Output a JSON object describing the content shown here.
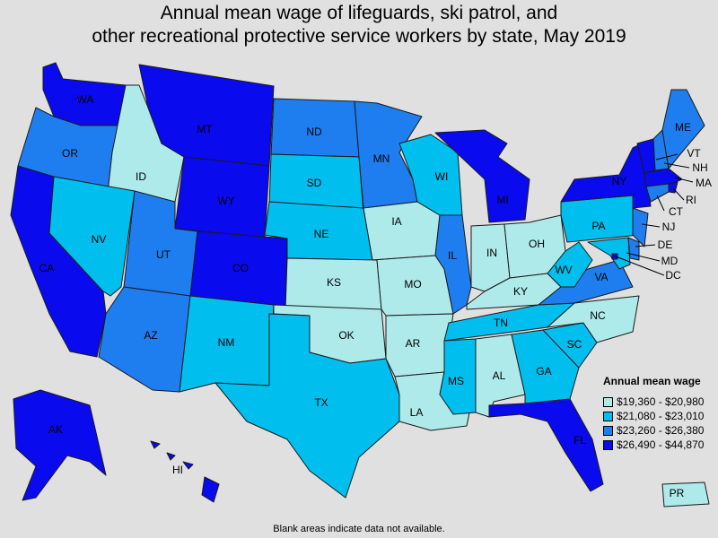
{
  "title_line1": "Annual mean wage of lifeguards, ski patrol, and",
  "title_line2": "other recreational protective service workers by state, May 2019",
  "legend": {
    "title": "Annual mean wage",
    "items": [
      {
        "label": "$19,360 - $20,980",
        "color": "#aeeaea"
      },
      {
        "label": "$21,080 - $23,010",
        "color": "#00bfef"
      },
      {
        "label": "$23,260 - $26,380",
        "color": "#1e7ef0"
      },
      {
        "label": "$26,490 - $44,870",
        "color": "#0a0aee"
      }
    ]
  },
  "footnote": "Blank areas indicate data not available.",
  "map_data": {
    "tiers": {
      "WA": 4,
      "OR": 3,
      "CA": 4,
      "ID": 1,
      "NV": 2,
      "MT": 4,
      "WY": 4,
      "UT": 3,
      "AZ": 3,
      "CO": 4,
      "NM": 2,
      "ND": 3,
      "SD": 2,
      "NE": 2,
      "KS": 1,
      "OK": 1,
      "TX": 2,
      "MN": 3,
      "IA": 1,
      "MO": 1,
      "AR": 1,
      "LA": 1,
      "WI": 2,
      "IL": 3,
      "MI": 4,
      "IN": 1,
      "OH": 1,
      "KY": 1,
      "TN": 2,
      "MS": 2,
      "AL": 1,
      "GA": 2,
      "FL": 4,
      "SC": 2,
      "NC": 1,
      "VA": 3,
      "WV": 2,
      "PA": 2,
      "NY": 4,
      "VT": 4,
      "NH": 3,
      "ME": 3,
      "MA": 4,
      "RI": 4,
      "CT": 3,
      "NJ": 3,
      "DE": 3,
      "MD": 2,
      "DC": 4,
      "AK": 4,
      "HI": 4,
      "PR": 1
    },
    "labels": {
      "WA": "WA",
      "OR": "OR",
      "CA": "CA",
      "ID": "ID",
      "NV": "NV",
      "MT": "MT",
      "WY": "WY",
      "UT": "UT",
      "AZ": "AZ",
      "CO": "CO",
      "NM": "NM",
      "ND": "ND",
      "SD": "SD",
      "NE": "NE",
      "KS": "KS",
      "OK": "OK",
      "TX": "TX",
      "MN": "MN",
      "IA": "IA",
      "MO": "MO",
      "AR": "AR",
      "LA": "LA",
      "WI": "WI",
      "IL": "IL",
      "MI": "MI",
      "IN": "IN",
      "OH": "OH",
      "KY": "KY",
      "TN": "TN",
      "MS": "MS",
      "AL": "AL",
      "GA": "GA",
      "FL": "FL",
      "SC": "SC",
      "NC": "NC",
      "VA": "VA",
      "WV": "WV",
      "PA": "PA",
      "NY": "NY",
      "VT": "VT",
      "NH": "NH",
      "ME": "ME",
      "MA": "MA",
      "RI": "RI",
      "CT": "CT",
      "NJ": "NJ",
      "DE": "DE",
      "MD": "MD",
      "DC": "DC",
      "AK": "AK",
      "HI": "HI",
      "PR": "PR"
    }
  }
}
